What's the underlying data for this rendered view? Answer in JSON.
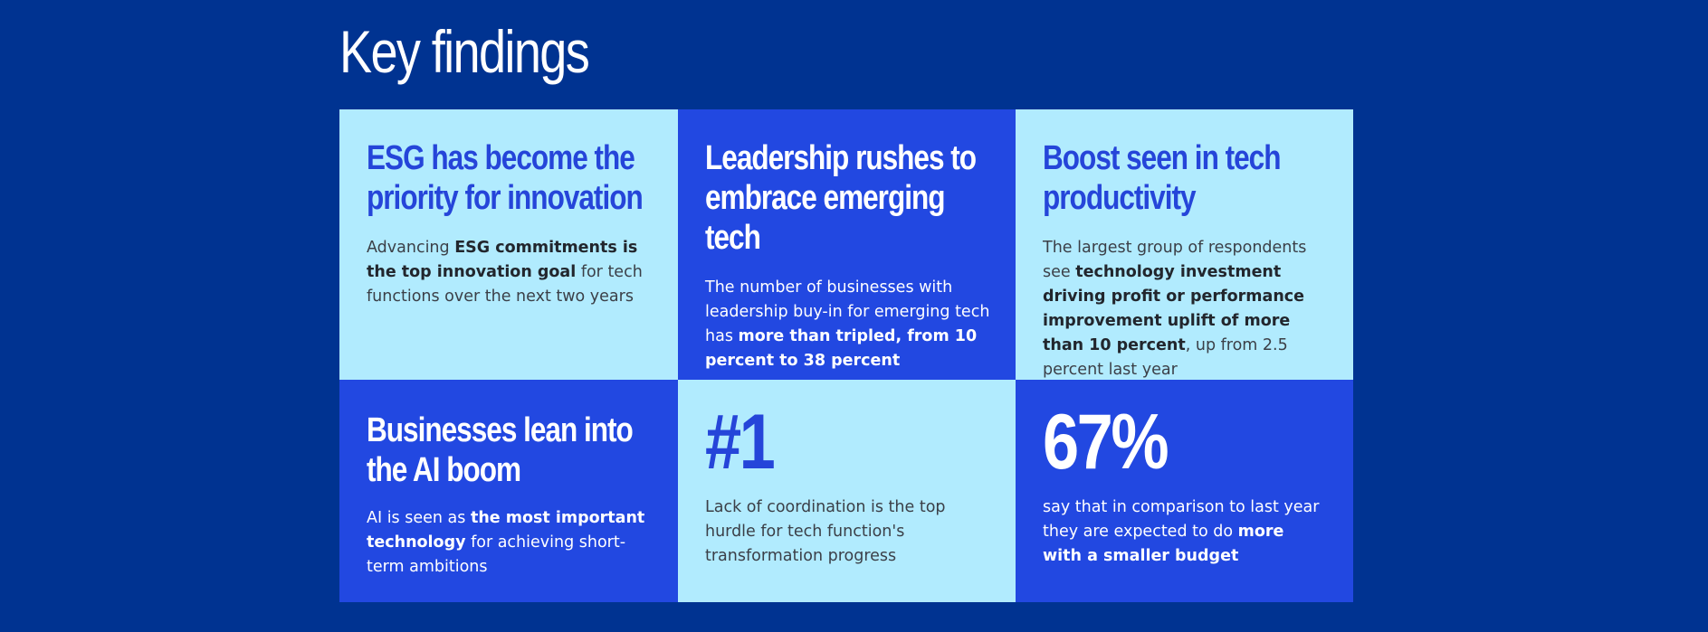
{
  "page": {
    "title": "Key findings"
  },
  "cards": [
    {
      "heading": "ESG has become the priority for innovation",
      "text_before": "Advancing ",
      "text_bold": "ESG commitments is the top innovation goal",
      "text_after": " for tech functions over the next two years"
    },
    {
      "heading": "Leadership rushes to embrace emerging tech",
      "text_before": "The number of businesses with leadership buy-in for emerging tech has ",
      "text_bold": "more than tripled, from 10 percent to 38 percent",
      "text_after": ""
    },
    {
      "heading": "Boost seen in tech productivity",
      "text_before": "The largest group of respondents see ",
      "text_bold": "technology investment driving profit or performance improvement uplift of more than 10 percent",
      "text_after": ", up from 2.5 percent last year"
    },
    {
      "heading": "Businesses lean into the AI boom",
      "text_before": "AI is seen as ",
      "text_bold": "the most important technology",
      "text_after": " for achieving short-term ambitions"
    },
    {
      "stat": "#1",
      "text_before": "Lack of coordination is the top hurdle for tech function's transformation progress",
      "text_bold": "",
      "text_after": ""
    },
    {
      "stat": "67%",
      "text_before": "say that in comparison to last year they are expected to do ",
      "text_bold": "more with a smaller budget",
      "text_after": ""
    }
  ],
  "colors": {
    "background": "#003391",
    "card_light": "#b1ebfe",
    "card_blue": "#2248e1",
    "heading_blue": "#2545d9",
    "white": "#ffffff"
  }
}
